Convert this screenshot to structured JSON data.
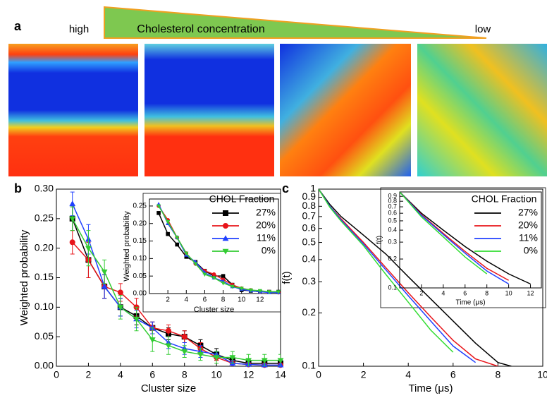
{
  "panels": {
    "a": "a",
    "b": "b",
    "c": "c"
  },
  "gradient": {
    "high": "high",
    "label": "Cholesterol concentration",
    "low": "low"
  },
  "chart_data": [
    {
      "type": "line",
      "xlabel": "Cluster size",
      "ylabel": "Weighted probability",
      "xlim": [
        0,
        14
      ],
      "ylim": [
        0,
        0.3
      ],
      "xticks": [
        0,
        2,
        4,
        6,
        8,
        10,
        12,
        14
      ],
      "yticks": [
        {
          "value": 0,
          "label": "0.00"
        },
        0.05,
        {
          "value": 0.1,
          "label": "0.10"
        },
        0.15,
        {
          "value": 0.2,
          "label": "0.20"
        },
        0.25,
        {
          "value": 0.3,
          "label": "0.30"
        }
      ],
      "legend_title": "CHOL Fraction",
      "legend": "upper right",
      "x": [
        1,
        2,
        3,
        4,
        5,
        6,
        7,
        8,
        9,
        10,
        11,
        12,
        13,
        14
      ],
      "series": [
        {
          "name": "27%",
          "color": "#000000",
          "marker": "square",
          "values": [
            0.25,
            0.18,
            0.135,
            0.1,
            0.085,
            0.065,
            0.055,
            0.05,
            0.035,
            0.02,
            0.01,
            0.005,
            0.005,
            0.005
          ],
          "errors": [
            0.02,
            0.03,
            0.02,
            0.015,
            0.015,
            0.01,
            0.01,
            0.01,
            0.01,
            0.01,
            0.005,
            0.005,
            0.005,
            0.005
          ]
        },
        {
          "name": "20%",
          "color": "#e8141a",
          "marker": "circle",
          "values": [
            0.21,
            0.18,
            0.135,
            0.125,
            0.1,
            0.065,
            0.06,
            0.05,
            0.03,
            0.015,
            0.005,
            0.003,
            0.002,
            0.002
          ],
          "errors": [
            0.02,
            0.03,
            0.02,
            0.015,
            0.015,
            0.01,
            0.01,
            0.01,
            0.01,
            0.005,
            0.005,
            0.003,
            0.002,
            0.002
          ]
        },
        {
          "name": "11%",
          "color": "#2040ff",
          "marker": "triangle",
          "values": [
            0.275,
            0.215,
            0.135,
            0.1,
            0.08,
            0.065,
            0.04,
            0.03,
            0.025,
            0.02,
            0.005,
            0.003,
            0.002,
            0.002
          ],
          "errors": [
            0.02,
            0.025,
            0.02,
            0.015,
            0.015,
            0.01,
            0.01,
            0.01,
            0.01,
            0.005,
            0.005,
            0.003,
            0.002,
            0.002
          ]
        },
        {
          "name": "0%",
          "color": "#33cc33",
          "marker": "triangle-down",
          "values": [
            0.25,
            0.2,
            0.16,
            0.1,
            0.08,
            0.045,
            0.035,
            0.025,
            0.02,
            0.015,
            0.015,
            0.01,
            0.01,
            0.01
          ],
          "errors": [
            0.02,
            0.03,
            0.02,
            0.02,
            0.02,
            0.02,
            0.015,
            0.01,
            0.01,
            0.01,
            0.01,
            0.01,
            0.01,
            0.01
          ]
        }
      ]
    },
    {
      "type": "line",
      "xlabel": "Cluster size",
      "ylabel": "Weighted probability",
      "xlim": [
        0,
        14
      ],
      "ylim": [
        0,
        0.27
      ],
      "xticks": [
        2,
        4,
        6,
        8,
        10,
        12
      ],
      "yticks": [
        {
          "value": 0,
          "label": "0.00"
        },
        0.05,
        {
          "value": 0.1,
          "label": "0.10"
        },
        0.15,
        {
          "value": 0.2,
          "label": "0.20"
        },
        0.25
      ],
      "x": [
        1,
        2,
        3,
        4,
        5,
        6,
        7,
        8,
        9,
        10,
        11,
        12,
        13,
        14
      ],
      "series": [
        {
          "color": "#000000",
          "marker": "square",
          "values": [
            0.23,
            0.17,
            0.14,
            0.105,
            0.09,
            0.065,
            0.05,
            0.05,
            0.025,
            0.01,
            0.008,
            0.005,
            0.005,
            0.005
          ]
        },
        {
          "color": "#e8141a",
          "marker": "circle",
          "values": [
            0.25,
            0.21,
            0.16,
            0.115,
            0.085,
            0.065,
            0.055,
            0.04,
            0.025,
            0.015,
            0.01,
            0.005,
            0.005,
            0.003
          ]
        },
        {
          "color": "#2040ff",
          "marker": "triangle",
          "values": [
            0.255,
            0.2,
            0.16,
            0.11,
            0.09,
            0.06,
            0.045,
            0.035,
            0.02,
            0.012,
            0.008,
            0.005,
            0.003,
            0.003
          ]
        },
        {
          "color": "#33cc33",
          "marker": "triangle-down",
          "values": [
            0.25,
            0.205,
            0.16,
            0.115,
            0.085,
            0.055,
            0.045,
            0.03,
            0.02,
            0.015,
            0.01,
            0.008,
            0.005,
            0.005
          ]
        }
      ]
    },
    {
      "type": "line",
      "xlabel": "Time (μs)",
      "ylabel": "f(t)",
      "ylog": true,
      "xlim": [
        0,
        10
      ],
      "ylim": [
        0.1,
        1
      ],
      "xticks": [
        0,
        2,
        4,
        6,
        8,
        10
      ],
      "yticks": [
        0.1,
        0.2,
        0.3,
        0.4,
        0.5,
        0.6,
        0.7,
        0.8,
        0.9,
        1
      ],
      "legend_title": "CHOL Fraction",
      "legend": "upper right",
      "x": [
        0,
        0.5,
        1,
        2,
        3,
        4,
        5,
        6,
        7,
        8,
        8.6
      ],
      "series": [
        {
          "name": "27%",
          "color": "#000000",
          "values": [
            1,
            0.82,
            0.7,
            0.55,
            0.43,
            0.32,
            0.24,
            0.18,
            0.135,
            0.105,
            0.1
          ]
        },
        {
          "name": "20%",
          "color": "#e8141a",
          "values": [
            1,
            0.8,
            0.68,
            0.5,
            0.36,
            0.26,
            0.19,
            0.14,
            0.11,
            0.1,
            null
          ]
        },
        {
          "name": "11%",
          "color": "#2040ff",
          "values": [
            1,
            0.8,
            0.67,
            0.49,
            0.35,
            0.25,
            0.18,
            0.13,
            0.105,
            null,
            null
          ]
        },
        {
          "name": "0%",
          "color": "#33dd33",
          "values": [
            1,
            0.79,
            0.66,
            0.48,
            0.33,
            0.23,
            0.16,
            0.12,
            null,
            null,
            null
          ]
        }
      ]
    },
    {
      "type": "line",
      "xlabel": "Time (μs)",
      "ylabel": "f(t)",
      "ylog": true,
      "xlim": [
        0,
        13
      ],
      "ylim": [
        0.1,
        1
      ],
      "xticks": [
        2,
        4,
        6,
        8,
        10,
        12
      ],
      "yticks": [
        0.1,
        0.2,
        0.3,
        0.4,
        0.5,
        0.6,
        0.7,
        0.8,
        0.9
      ],
      "x": [
        0,
        2,
        4,
        6,
        8,
        10,
        12
      ],
      "series": [
        {
          "color": "#000000",
          "values": [
            1,
            0.6,
            0.4,
            0.27,
            0.19,
            0.14,
            0.11
          ]
        },
        {
          "color": "#e8141a",
          "values": [
            1,
            0.58,
            0.37,
            0.24,
            0.16,
            0.12,
            null
          ]
        },
        {
          "color": "#2040ff",
          "values": [
            1,
            0.57,
            0.36,
            0.23,
            0.15,
            0.11,
            null
          ]
        },
        {
          "color": "#33dd33",
          "values": [
            1,
            0.55,
            0.34,
            0.21,
            0.14,
            null,
            null
          ]
        }
      ]
    }
  ]
}
